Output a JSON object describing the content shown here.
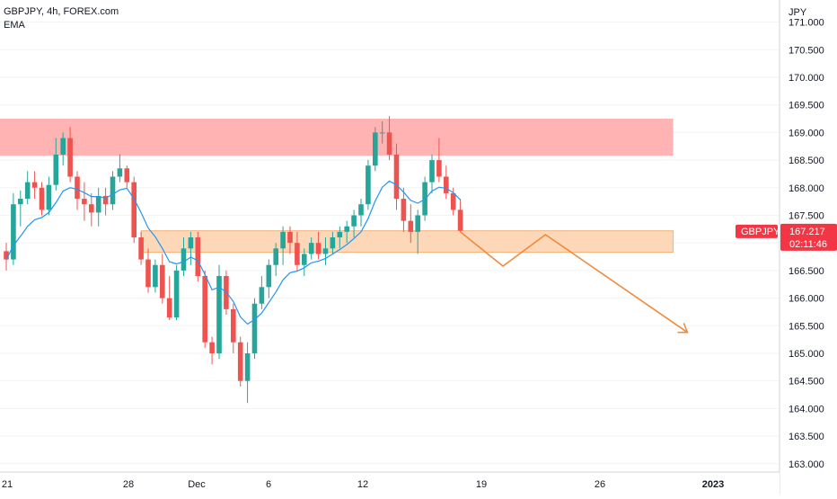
{
  "header": {
    "symbol_line": "GBPJPY, 4h, FOREX.com",
    "indicator": "EMA"
  },
  "price_scale": {
    "currency": "JPY",
    "ticks": [
      "171.000",
      "170.500",
      "170.000",
      "169.500",
      "169.000",
      "168.500",
      "168.000",
      "167.500",
      "167.000",
      "166.500",
      "166.000",
      "165.500",
      "165.000",
      "164.500",
      "164.000",
      "163.500",
      "163.000"
    ]
  },
  "time_scale": {
    "ticks": [
      "21",
      "28",
      "Dec",
      "6",
      "12",
      "19",
      "26",
      "2023"
    ]
  },
  "price_label": {
    "symbol": "GBPJPY",
    "price": "167.217",
    "countdown": "02:11:46"
  },
  "colors": {
    "up": "#26a69a",
    "down": "#ef5350",
    "ema": "#2196f3",
    "resistance_zone": "#ffb3b3",
    "support_zone": "#fdd8b8",
    "projection": "#f08a3c",
    "label_bg": "#f23645"
  },
  "chart_data": {
    "type": "candlestick",
    "timeframe": "4h",
    "ylim": [
      162.85,
      171.4
    ],
    "x_ticks": [
      "21",
      "28",
      "Dec",
      "6",
      "12",
      "19",
      "26",
      "2023"
    ],
    "ohlc": [
      [
        166.85,
        167.0,
        166.5,
        166.7
      ],
      [
        166.7,
        167.9,
        166.6,
        167.7
      ],
      [
        167.7,
        167.95,
        167.3,
        167.8
      ],
      [
        167.8,
        168.3,
        167.7,
        168.1
      ],
      [
        168.1,
        168.3,
        167.8,
        168.0
      ],
      [
        168.0,
        168.1,
        167.5,
        167.6
      ],
      [
        167.6,
        168.2,
        167.5,
        168.05
      ],
      [
        168.05,
        168.9,
        167.95,
        168.6
      ],
      [
        168.6,
        169.0,
        168.4,
        168.9
      ],
      [
        168.9,
        169.1,
        168.1,
        168.2
      ],
      [
        168.2,
        168.3,
        167.6,
        167.8
      ],
      [
        167.8,
        168.1,
        167.4,
        167.7
      ],
      [
        167.7,
        167.9,
        167.3,
        167.55
      ],
      [
        167.55,
        168.0,
        167.3,
        167.85
      ],
      [
        167.85,
        168.0,
        167.5,
        167.7
      ],
      [
        167.7,
        168.3,
        167.6,
        168.2
      ],
      [
        168.2,
        168.6,
        168.1,
        168.35
      ],
      [
        168.35,
        168.4,
        168.0,
        168.1
      ],
      [
        168.1,
        168.2,
        167.0,
        167.1
      ],
      [
        167.1,
        167.2,
        166.6,
        166.7
      ],
      [
        166.7,
        166.9,
        166.1,
        166.2
      ],
      [
        166.2,
        166.7,
        166.1,
        166.6
      ],
      [
        166.6,
        166.8,
        165.9,
        166.0
      ],
      [
        166.0,
        166.4,
        165.6,
        165.65
      ],
      [
        165.65,
        166.6,
        165.6,
        166.5
      ],
      [
        166.5,
        167.1,
        166.4,
        166.9
      ],
      [
        166.9,
        167.2,
        166.6,
        167.1
      ],
      [
        167.1,
        167.2,
        166.3,
        166.4
      ],
      [
        166.4,
        166.5,
        165.1,
        165.2
      ],
      [
        165.2,
        165.3,
        164.8,
        165.0
      ],
      [
        165.0,
        166.6,
        164.9,
        166.4
      ],
      [
        166.4,
        166.5,
        165.7,
        165.8
      ],
      [
        165.8,
        165.9,
        165.0,
        165.2
      ],
      [
        165.2,
        165.3,
        164.4,
        164.5
      ],
      [
        164.5,
        165.2,
        164.1,
        165.0
      ],
      [
        165.0,
        166.0,
        164.9,
        165.9
      ],
      [
        165.9,
        166.4,
        165.8,
        166.2
      ],
      [
        166.2,
        166.7,
        166.0,
        166.6
      ],
      [
        166.6,
        167.0,
        166.4,
        166.9
      ],
      [
        166.9,
        167.3,
        166.6,
        167.2
      ],
      [
        167.2,
        167.3,
        166.8,
        167.0
      ],
      [
        167.0,
        167.2,
        166.5,
        166.6
      ],
      [
        166.6,
        166.9,
        166.4,
        166.8
      ],
      [
        166.8,
        167.1,
        166.7,
        167.0
      ],
      [
        167.0,
        167.2,
        166.7,
        166.8
      ],
      [
        166.8,
        167.1,
        166.6,
        166.9
      ],
      [
        166.9,
        167.2,
        166.8,
        167.1
      ],
      [
        167.1,
        167.3,
        166.9,
        167.2
      ],
      [
        167.2,
        167.4,
        167.0,
        167.3
      ],
      [
        167.3,
        167.6,
        167.1,
        167.5
      ],
      [
        167.5,
        167.8,
        167.3,
        167.7
      ],
      [
        167.7,
        168.5,
        167.6,
        168.4
      ],
      [
        168.4,
        169.1,
        168.3,
        169.0
      ],
      [
        169.0,
        169.2,
        168.8,
        169.0
      ],
      [
        169.0,
        169.3,
        168.5,
        168.6
      ],
      [
        168.6,
        168.8,
        167.6,
        167.8
      ],
      [
        167.8,
        168.0,
        167.2,
        167.4
      ],
      [
        167.4,
        167.7,
        167.0,
        167.2
      ],
      [
        167.2,
        167.6,
        166.8,
        167.5
      ],
      [
        167.5,
        168.2,
        167.4,
        168.1
      ],
      [
        168.1,
        168.6,
        167.9,
        168.5
      ],
      [
        168.5,
        168.9,
        168.1,
        168.2
      ],
      [
        168.2,
        168.4,
        167.8,
        167.9
      ],
      [
        167.9,
        168.0,
        167.5,
        167.6
      ],
      [
        167.6,
        167.8,
        167.2,
        167.22
      ]
    ],
    "ema": [
      166.7,
      166.95,
      167.12,
      167.3,
      167.42,
      167.46,
      167.55,
      167.73,
      167.94,
      168.0,
      167.97,
      167.91,
      167.84,
      167.84,
      167.81,
      167.88,
      167.96,
      167.99,
      167.8,
      167.55,
      167.27,
      167.11,
      166.9,
      166.66,
      166.62,
      166.66,
      166.74,
      166.68,
      166.43,
      166.15,
      166.2,
      166.11,
      165.94,
      165.66,
      165.53,
      165.61,
      165.73,
      165.92,
      166.11,
      166.33,
      166.46,
      166.49,
      166.55,
      166.64,
      166.67,
      166.72,
      166.8,
      166.88,
      166.97,
      167.08,
      167.2,
      167.44,
      167.76,
      168.01,
      168.12,
      168.05,
      167.92,
      167.77,
      167.72,
      167.79,
      167.94,
      168.01,
      167.99,
      167.91,
      167.78
    ],
    "zones": [
      {
        "name": "resistance",
        "from_index": -2,
        "to_index": 94,
        "low": 168.58,
        "high": 169.25
      },
      {
        "name": "support",
        "from_index": 19,
        "to_index": 94,
        "low": 166.83,
        "high": 167.22
      }
    ],
    "projection": [
      [
        64,
        167.2
      ],
      [
        70,
        166.58
      ],
      [
        76,
        167.15
      ],
      [
        96,
        165.38
      ]
    ]
  }
}
